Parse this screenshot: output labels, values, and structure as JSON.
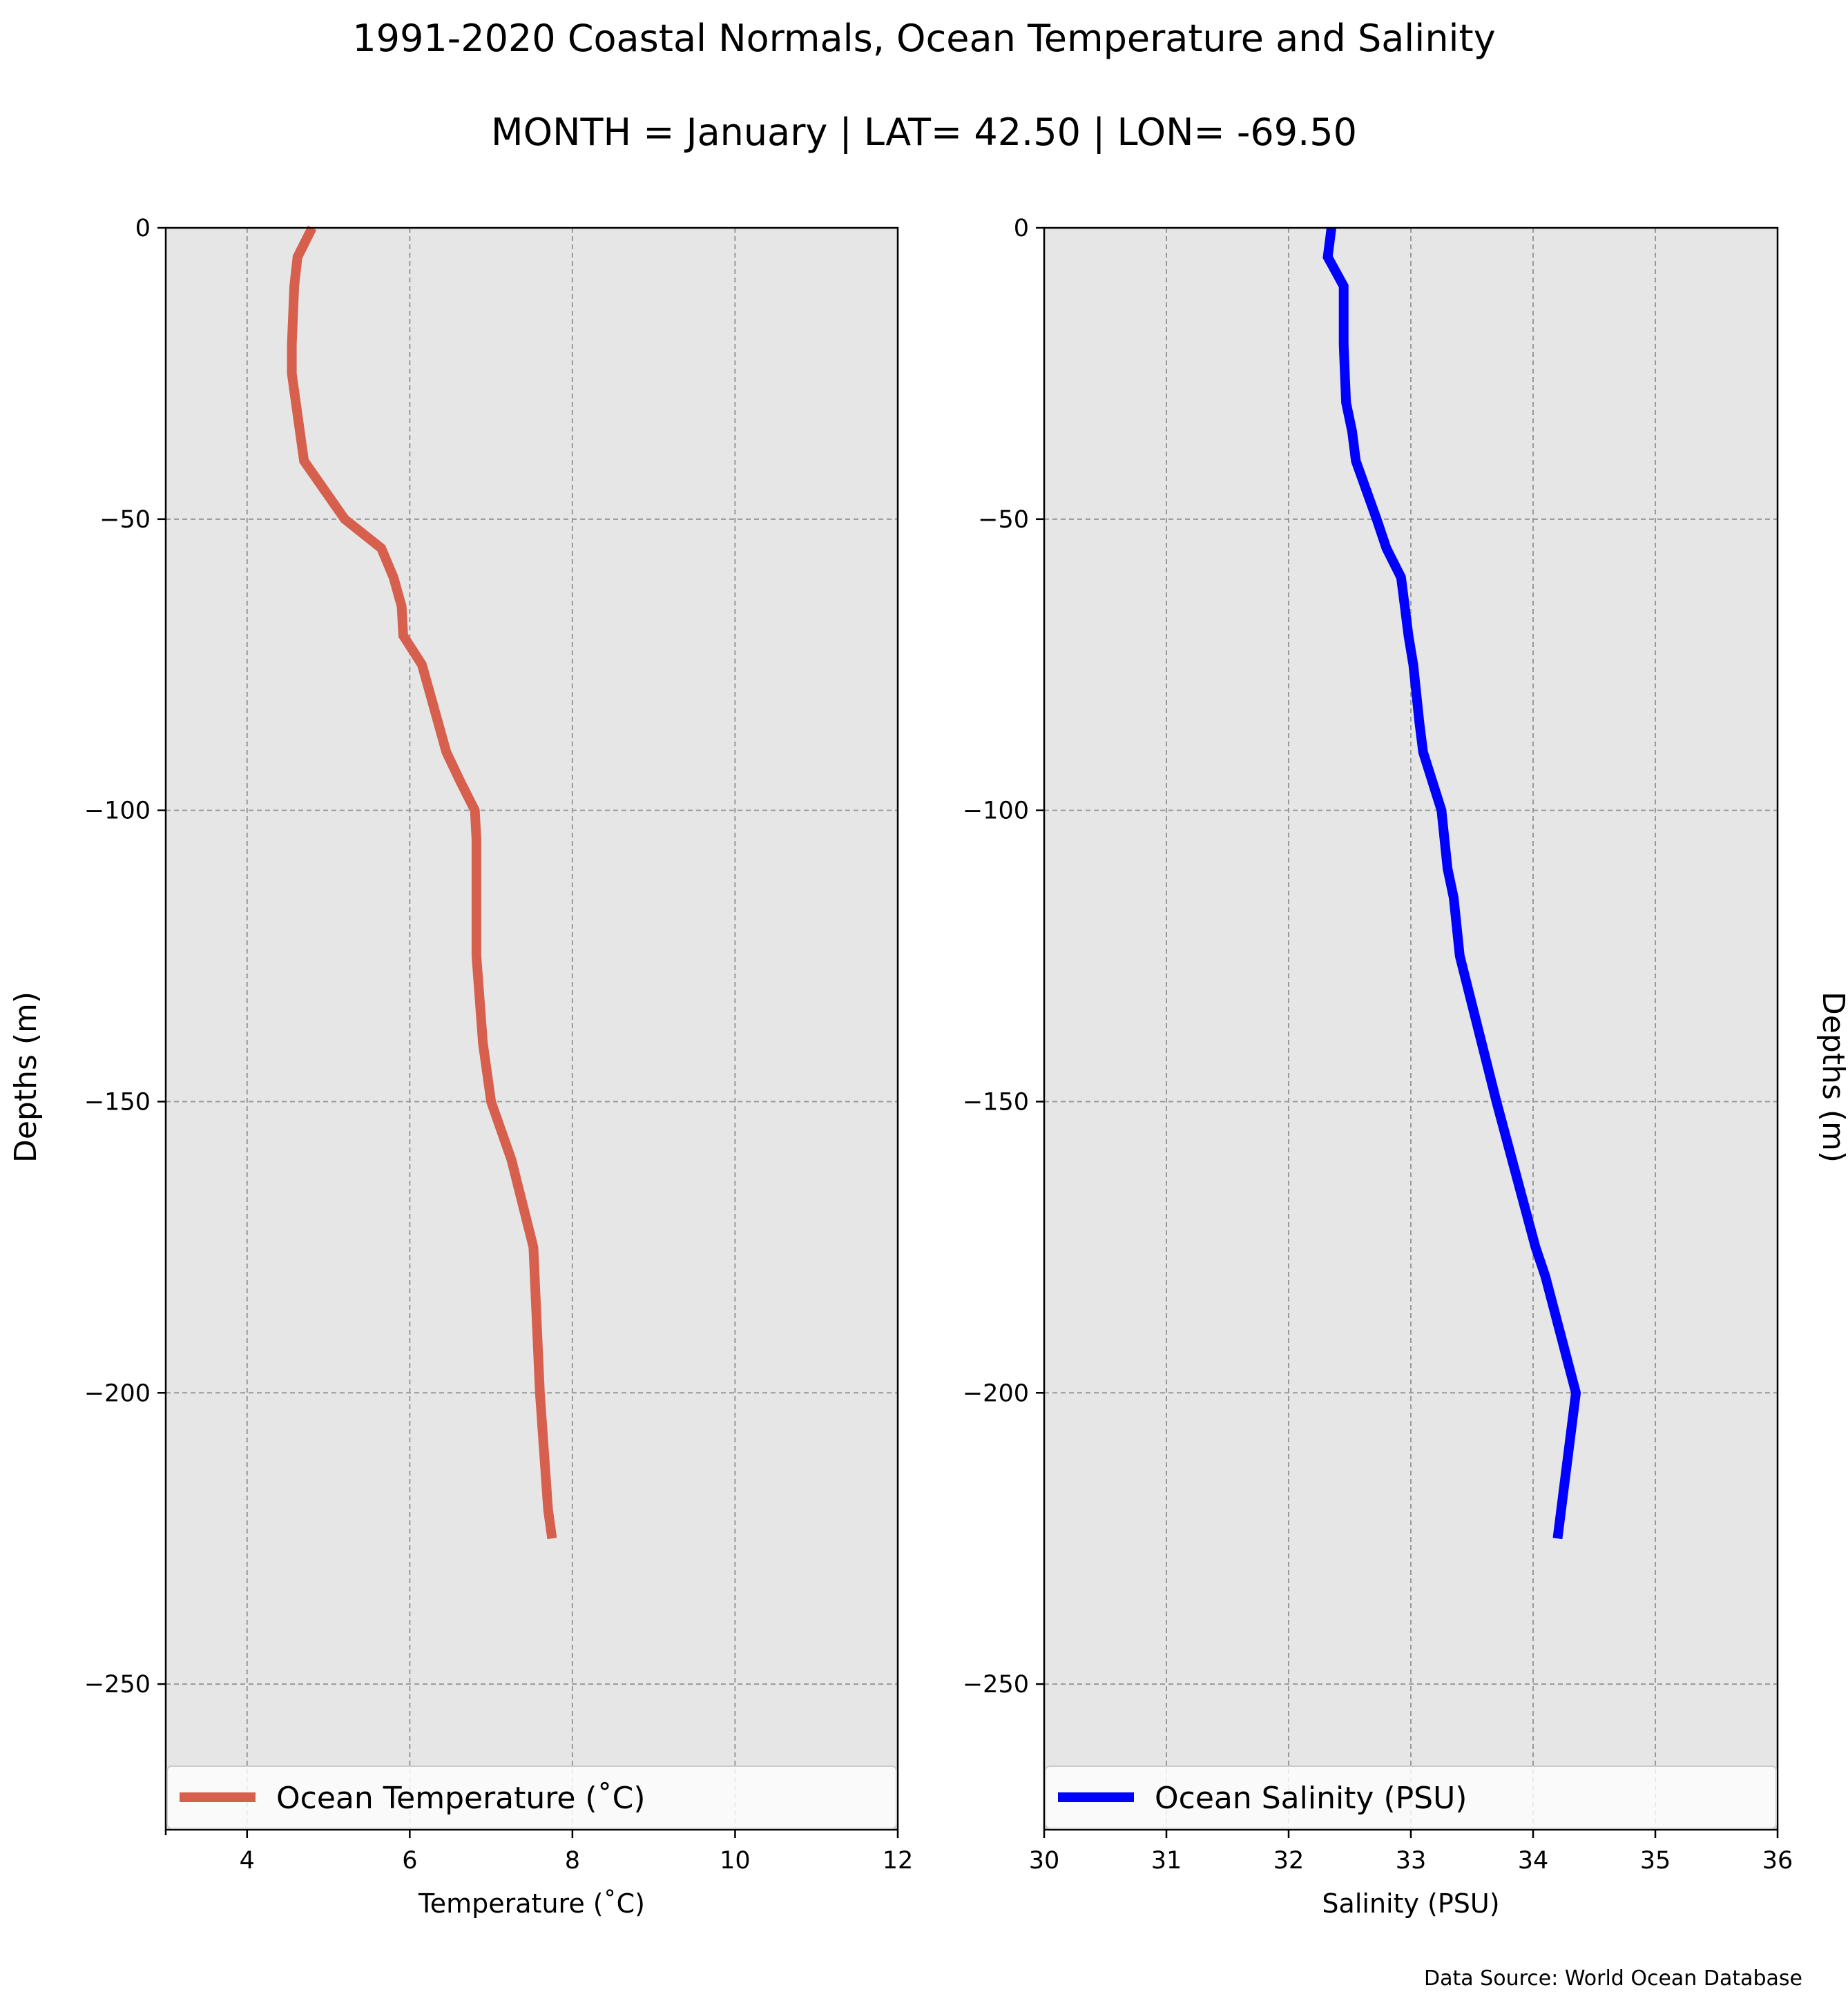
{
  "figure": {
    "title_line1": "1991-2020 Coastal Normals, Ocean Temperature and Salinity",
    "title_line2": "MONTH = January | LAT= 42.50 | LON= -69.50",
    "source_note": "Data Source: World Ocean Database"
  },
  "chart_data": [
    {
      "type": "line",
      "name": "temperature-profile",
      "xlabel": "Temperature ($^\\circ$C)",
      "xlabel_display": "Temperature (˚C)",
      "ylabel": "Depths (m)",
      "xlim": [
        3,
        12
      ],
      "ylim": [
        -275,
        0
      ],
      "xticks": [
        4,
        6,
        8,
        10,
        12
      ],
      "yticks": [
        0,
        -50,
        -100,
        -150,
        -200,
        -250
      ],
      "grid": true,
      "legend_position": "lower-center",
      "line_color": "#d6604d",
      "series": [
        {
          "name": "Ocean Temperature (˚C)",
          "x": [
            4.8,
            4.62,
            4.58,
            4.55,
            4.55,
            4.6,
            4.7,
            5.2,
            5.65,
            5.8,
            5.9,
            5.92,
            6.15,
            6.25,
            6.45,
            6.62,
            6.8,
            6.82,
            6.82,
            6.82,
            6.82,
            6.9,
            7.0,
            7.25,
            7.52,
            7.6,
            7.7,
            7.75
          ],
          "y": [
            0,
            -5,
            -10,
            -20,
            -25,
            -30,
            -40,
            -50,
            -55,
            -60,
            -65,
            -70,
            -75,
            -80,
            -90,
            -95,
            -100,
            -105,
            -110,
            -115,
            -125,
            -140,
            -150,
            -160,
            -175,
            -200,
            -220,
            -225
          ]
        }
      ]
    },
    {
      "type": "line",
      "name": "salinity-profile",
      "xlabel": "Salinity (PSU)",
      "ylabel": "Depths (m)",
      "xlim": [
        30,
        36
      ],
      "ylim": [
        -275,
        0
      ],
      "xticks": [
        30,
        31,
        32,
        33,
        34,
        35,
        36
      ],
      "yticks": [
        0,
        -50,
        -100,
        -150,
        -200,
        -250
      ],
      "grid": true,
      "legend_position": "lower-center",
      "line_color": "#0000ff",
      "series": [
        {
          "name": "Ocean Salinity (PSU)",
          "x": [
            32.35,
            32.32,
            32.45,
            32.45,
            32.46,
            32.47,
            32.52,
            32.55,
            32.72,
            32.8,
            32.92,
            32.95,
            32.98,
            33.02,
            33.07,
            33.1,
            33.25,
            33.3,
            33.35,
            33.4,
            33.7,
            34.02,
            34.1,
            34.35,
            34.2
          ],
          "y": [
            0,
            -5,
            -10,
            -20,
            -25,
            -30,
            -35,
            -40,
            -50,
            -55,
            -60,
            -65,
            -70,
            -75,
            -85,
            -90,
            -100,
            -110,
            -115,
            -125,
            -150,
            -175,
            -180,
            -200,
            -225
          ]
        }
      ]
    }
  ]
}
